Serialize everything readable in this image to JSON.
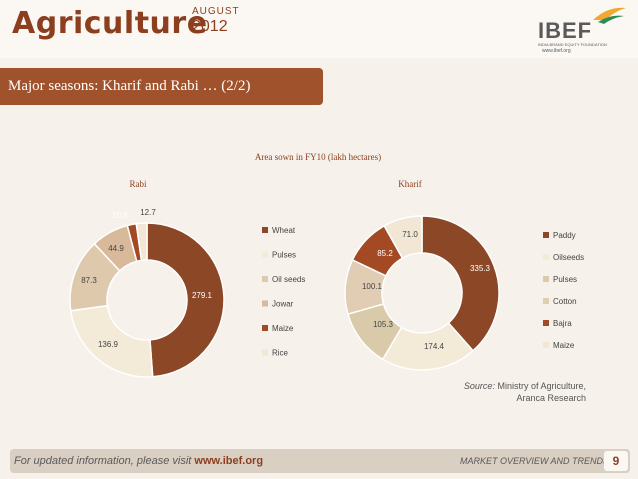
{
  "header": {
    "brand": "Agriculture",
    "month": "AUGUST",
    "year": "2012",
    "logo_text": "IBEF",
    "logo_sub": "INDIA BRAND EQUITY FOUNDATION",
    "logo_url": "www.ibef.org"
  },
  "slide_title": "Major seasons: Kharif and Rabi … (2/2)",
  "chart_data": {
    "type": "pie",
    "title": "Area sown in FY10 (lakh hectares)",
    "charts": [
      {
        "name": "Rabi",
        "categories": [
          "Wheat",
          "Pulses",
          "Oil seeds",
          "Jowar",
          "Maize",
          "Rice"
        ],
        "values": [
          279.1,
          136.9,
          87.3,
          44.9,
          10.8,
          12.7
        ],
        "labels": [
          "279.1",
          "136.9",
          "87.3",
          "44.9",
          "10.8",
          "12.7"
        ],
        "colors": [
          "#8b4726",
          "#f3ead8",
          "#dfc9ad",
          "#d8b99a",
          "#a34a25",
          "#f1e7d4"
        ],
        "legend": [
          "Wheat",
          "Pulses",
          "Oil seeds",
          "Jowar",
          "Maize",
          "Rice"
        ]
      },
      {
        "name": "Kharif",
        "categories": [
          "Paddy",
          "Oilseeds",
          "Pulses",
          "Cotton",
          "Bajra",
          "Maize"
        ],
        "values": [
          335.3,
          174.4,
          105.3,
          100.1,
          85.2,
          71.0
        ],
        "labels": [
          "335.3",
          "174.4",
          "105.3",
          "100.1",
          "85.2",
          "71.0"
        ],
        "colors": [
          "#8b4726",
          "#f3ead8",
          "#d9cba9",
          "#e0cdb4",
          "#a34a25",
          "#f1e7d4"
        ],
        "legend": [
          "Paddy",
          "Oilseeds",
          "Pulses",
          "Cotton",
          "Bajra",
          "Maize"
        ]
      }
    ]
  },
  "source": {
    "prefix": "Source:",
    "text": "Ministry of Agriculture, Aranca Research"
  },
  "footer": {
    "left_prefix": "For updated information, please visit",
    "left_link": "www.ibef.org",
    "right": "MARKET OVERVIEW AND TRENDS",
    "page": "9"
  },
  "colors": {
    "accent": "#8c3e1f",
    "title_bar": "#a0522d",
    "background": "#f6f1ea"
  }
}
